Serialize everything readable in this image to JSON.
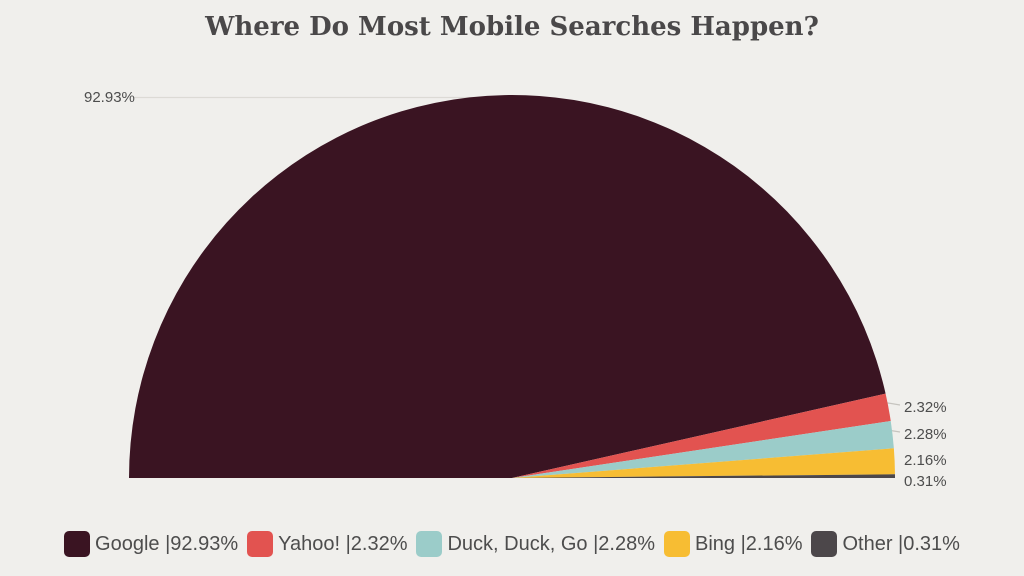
{
  "title": "Where Do Most Mobile Searches Happen?",
  "colors": {
    "background": "#f0efec",
    "text": "#4d4d4d",
    "title_text": "#4a4849",
    "leader_line_long": "#dcdad5",
    "leader_line_short": "#c6c4bf"
  },
  "chart_data": {
    "type": "pie",
    "variant": "half-pie",
    "title": "Where Do Most Mobile Searches Happen?",
    "legend_position": "bottom",
    "total_degrees": 180,
    "series": [
      {
        "name": "Google",
        "value": 92.93,
        "color": "#3a1422",
        "value_label": "92.93%",
        "legend_label": "Google |92.93%"
      },
      {
        "name": "Yahoo!",
        "value": 2.32,
        "color": "#e25350",
        "value_label": "2.32%",
        "legend_label": "Yahoo! |2.32%"
      },
      {
        "name": "Duck, Duck, Go",
        "value": 2.28,
        "color": "#9bccc9",
        "value_label": "2.28%",
        "legend_label": "Duck, Duck, Go |2.28%"
      },
      {
        "name": "Bing",
        "value": 2.16,
        "color": "#f7bd33",
        "value_label": "2.16%",
        "legend_label": "Bing |2.16%"
      },
      {
        "name": "Other",
        "value": 0.31,
        "color": "#4c474a",
        "value_label": "0.31%",
        "legend_label": "Other |0.31%"
      }
    ]
  }
}
